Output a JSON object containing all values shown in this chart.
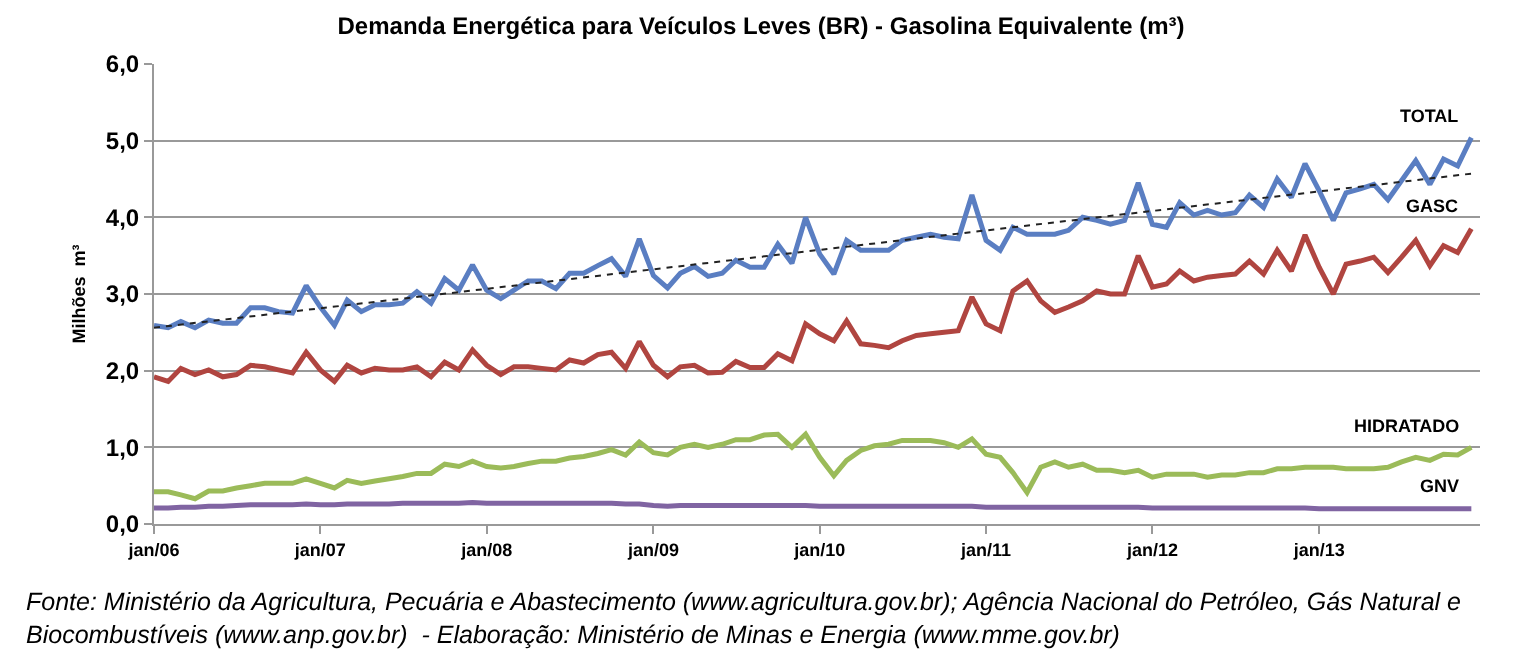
{
  "chart_data": {
    "type": "line",
    "title": "Demanda Energética para Veículos Leves (BR) - Gasolina Equivalente (m³)",
    "ylabel": "Milhões  m³",
    "x": [
      "2006-01",
      "2006-02",
      "2006-03",
      "2006-04",
      "2006-05",
      "2006-06",
      "2006-07",
      "2006-08",
      "2006-09",
      "2006-10",
      "2006-11",
      "2006-12",
      "2007-01",
      "2007-02",
      "2007-03",
      "2007-04",
      "2007-05",
      "2007-06",
      "2007-07",
      "2007-08",
      "2007-09",
      "2007-10",
      "2007-11",
      "2007-12",
      "2008-01",
      "2008-02",
      "2008-03",
      "2008-04",
      "2008-05",
      "2008-06",
      "2008-07",
      "2008-08",
      "2008-09",
      "2008-10",
      "2008-11",
      "2008-12",
      "2009-01",
      "2009-02",
      "2009-03",
      "2009-04",
      "2009-05",
      "2009-06",
      "2009-07",
      "2009-08",
      "2009-09",
      "2009-10",
      "2009-11",
      "2009-12",
      "2010-01",
      "2010-02",
      "2010-03",
      "2010-04",
      "2010-05",
      "2010-06",
      "2010-07",
      "2010-08",
      "2010-09",
      "2010-10",
      "2010-11",
      "2010-12",
      "2011-01",
      "2011-02",
      "2011-03",
      "2011-04",
      "2011-05",
      "2011-06",
      "2011-07",
      "2011-08",
      "2011-09",
      "2011-10",
      "2011-11",
      "2011-12",
      "2012-01",
      "2012-02",
      "2012-03",
      "2012-04",
      "2012-05",
      "2012-06",
      "2012-07",
      "2012-08",
      "2012-09",
      "2012-10",
      "2012-11",
      "2012-12",
      "2013-01",
      "2013-02",
      "2013-03",
      "2013-04",
      "2013-05",
      "2013-06",
      "2013-07",
      "2013-08",
      "2013-09",
      "2013-10",
      "2013-11",
      "2013-12"
    ],
    "series": [
      {
        "name": "TOTAL",
        "color": "#5a7ec2",
        "values": [
          2.59,
          2.56,
          2.64,
          2.56,
          2.66,
          2.62,
          2.62,
          2.82,
          2.82,
          2.77,
          2.75,
          3.11,
          2.83,
          2.59,
          2.92,
          2.77,
          2.86,
          2.86,
          2.88,
          3.03,
          2.88,
          3.2,
          3.05,
          3.38,
          3.05,
          2.94,
          3.05,
          3.17,
          3.17,
          3.07,
          3.27,
          3.27,
          3.37,
          3.46,
          3.23,
          3.72,
          3.24,
          3.08,
          3.27,
          3.36,
          3.23,
          3.27,
          3.44,
          3.35,
          3.35,
          3.65,
          3.4,
          4.0,
          3.52,
          3.26,
          3.7,
          3.57,
          3.57,
          3.57,
          3.7,
          3.74,
          3.78,
          3.74,
          3.72,
          4.29,
          3.7,
          3.57,
          3.87,
          3.78,
          3.78,
          3.78,
          3.83,
          4.0,
          3.96,
          3.91,
          3.96,
          4.45,
          3.91,
          3.87,
          4.19,
          4.03,
          4.09,
          4.03,
          4.06,
          4.29,
          4.13,
          4.5,
          4.26,
          4.7,
          4.35,
          3.96,
          4.32,
          4.37,
          4.43,
          4.23,
          4.48,
          4.74,
          4.43,
          4.76,
          4.67,
          5.04
        ]
      },
      {
        "name": "GASC",
        "color": "#b04540",
        "values": [
          1.92,
          1.86,
          2.03,
          1.95,
          2.01,
          1.92,
          1.95,
          2.07,
          2.05,
          2.01,
          1.97,
          2.24,
          2.01,
          1.86,
          2.07,
          1.97,
          2.03,
          2.01,
          2.01,
          2.05,
          1.92,
          2.11,
          2.01,
          2.27,
          2.07,
          1.95,
          2.05,
          2.05,
          2.03,
          2.01,
          2.14,
          2.1,
          2.21,
          2.24,
          2.03,
          2.38,
          2.07,
          1.92,
          2.05,
          2.07,
          1.97,
          1.98,
          2.12,
          2.04,
          2.04,
          2.22,
          2.13,
          2.61,
          2.48,
          2.39,
          2.65,
          2.35,
          2.33,
          2.3,
          2.39,
          2.46,
          2.48,
          2.5,
          2.52,
          2.96,
          2.61,
          2.52,
          3.04,
          3.17,
          2.91,
          2.76,
          2.83,
          2.91,
          3.04,
          3.0,
          3.0,
          3.5,
          3.09,
          3.13,
          3.3,
          3.17,
          3.22,
          3.24,
          3.26,
          3.43,
          3.26,
          3.57,
          3.3,
          3.77,
          3.35,
          3.0,
          3.39,
          3.43,
          3.48,
          3.28,
          3.48,
          3.7,
          3.37,
          3.63,
          3.54,
          3.85
        ]
      },
      {
        "name": "HIDRATADO",
        "color": "#9bbb59",
        "values": [
          0.42,
          0.42,
          0.38,
          0.33,
          0.43,
          0.43,
          0.47,
          0.5,
          0.53,
          0.53,
          0.53,
          0.59,
          0.53,
          0.47,
          0.57,
          0.53,
          0.56,
          0.59,
          0.62,
          0.66,
          0.66,
          0.78,
          0.75,
          0.82,
          0.75,
          0.73,
          0.75,
          0.79,
          0.82,
          0.82,
          0.86,
          0.88,
          0.92,
          0.97,
          0.9,
          1.07,
          0.93,
          0.9,
          1.0,
          1.04,
          1.0,
          1.04,
          1.1,
          1.1,
          1.16,
          1.17,
          1.0,
          1.17,
          0.87,
          0.63,
          0.83,
          0.96,
          1.02,
          1.04,
          1.09,
          1.09,
          1.09,
          1.06,
          1.0,
          1.11,
          0.91,
          0.87,
          0.67,
          0.41,
          0.74,
          0.81,
          0.74,
          0.78,
          0.7,
          0.7,
          0.67,
          0.7,
          0.61,
          0.65,
          0.65,
          0.65,
          0.61,
          0.64,
          0.64,
          0.67,
          0.67,
          0.72,
          0.72,
          0.74,
          0.74,
          0.74,
          0.72,
          0.72,
          0.72,
          0.74,
          0.81,
          0.87,
          0.83,
          0.91,
          0.9,
          1.0
        ]
      },
      {
        "name": "GNV",
        "color": "#8064a2",
        "values": [
          0.21,
          0.21,
          0.22,
          0.22,
          0.23,
          0.23,
          0.24,
          0.25,
          0.25,
          0.25,
          0.25,
          0.26,
          0.25,
          0.25,
          0.26,
          0.26,
          0.26,
          0.26,
          0.27,
          0.27,
          0.27,
          0.27,
          0.27,
          0.28,
          0.27,
          0.27,
          0.27,
          0.27,
          0.27,
          0.27,
          0.27,
          0.27,
          0.27,
          0.27,
          0.26,
          0.26,
          0.24,
          0.23,
          0.24,
          0.24,
          0.24,
          0.24,
          0.24,
          0.24,
          0.24,
          0.24,
          0.24,
          0.24,
          0.23,
          0.23,
          0.23,
          0.23,
          0.23,
          0.23,
          0.23,
          0.23,
          0.23,
          0.23,
          0.23,
          0.23,
          0.22,
          0.22,
          0.22,
          0.22,
          0.22,
          0.22,
          0.22,
          0.22,
          0.22,
          0.22,
          0.22,
          0.22,
          0.21,
          0.21,
          0.21,
          0.21,
          0.21,
          0.21,
          0.21,
          0.21,
          0.21,
          0.21,
          0.21,
          0.21,
          0.2,
          0.2,
          0.2,
          0.2,
          0.2,
          0.2,
          0.2,
          0.2,
          0.2,
          0.2,
          0.2,
          0.2
        ]
      },
      {
        "type": "line",
        "x": [
          "2006-01",
          "2013-12"
        ],
        "values": [
          2.56,
          4.57
        ],
        "color": "#222222",
        "line_style": "dotted"
      }
    ],
    "xlim": [
      "2006-01",
      "2013-12-20"
    ],
    "xticks": [
      {
        "value": "2006-01",
        "label": "jan/06"
      },
      {
        "value": "2007-01",
        "label": "jan/07"
      },
      {
        "value": "2008-01",
        "label": "jan/08"
      },
      {
        "value": "2009-01",
        "label": "jan/09"
      },
      {
        "value": "2010-01",
        "label": "jan/10"
      },
      {
        "value": "2011-01",
        "label": "jan/11"
      },
      {
        "value": "2012-01",
        "label": "jan/12"
      },
      {
        "value": "2013-01",
        "label": "jan/13"
      }
    ],
    "ylim": [
      0,
      6
    ],
    "yticks": [
      {
        "value": 0,
        "label": "0,0"
      },
      {
        "value": 1,
        "label": "1,0"
      },
      {
        "value": 2,
        "label": "2,0"
      },
      {
        "value": 3,
        "label": "3,0"
      },
      {
        "value": 4,
        "label": "4,0"
      },
      {
        "value": 5,
        "label": "5,0"
      },
      {
        "value": 6,
        "label": "6,0"
      }
    ],
    "grid": "y",
    "legend": false,
    "marker": "none",
    "line_style": "solid",
    "annotations": [
      "Fonte: Ministério da Agricultura, Pecuária e Abastecimento (www.agricultura.gov.br); Agência Nacional do Petróleo, Gás Natural e\nBiocombustíveis (www.anp.gov.br)  - Elaboração: Ministério de Minas e Energia (www.mme.gov.br)"
    ]
  }
}
